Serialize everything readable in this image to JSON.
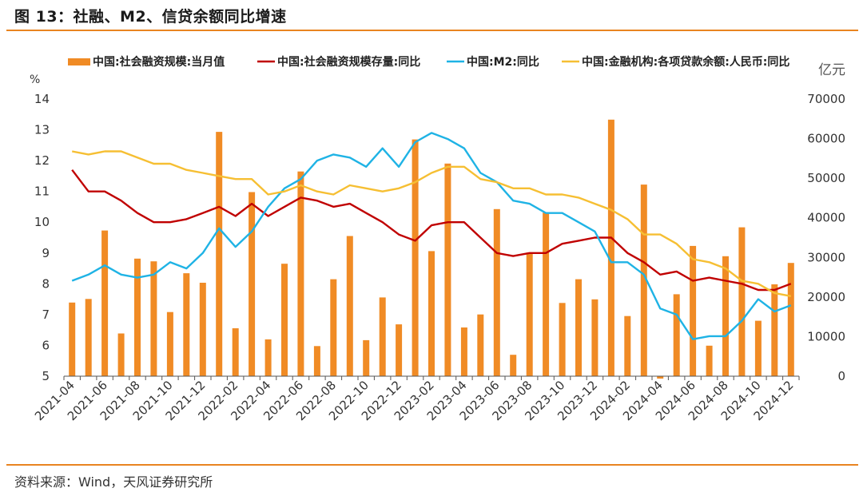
{
  "title": "图 13：社融、M2、信贷余额同比增速",
  "source": "资料来源：Wind，天风证券研究所",
  "chart_data": {
    "type": "bar+line",
    "left_unit": "%",
    "right_unit": "亿元",
    "y_left": {
      "min": 5,
      "max": 14,
      "ticks": [
        "14",
        "13",
        "12",
        "11",
        "10",
        "9",
        "8",
        "7",
        "6",
        "5"
      ]
    },
    "y_right": {
      "min": 0,
      "max": 70000,
      "ticks": [
        "70000",
        "60000",
        "50000",
        "40000",
        "30000",
        "20000",
        "10000",
        "0"
      ]
    },
    "legend_position": "top",
    "grid": false,
    "x_tick_labels": [
      "2021-04",
      "2021-06",
      "2021-08",
      "2021-10",
      "2021-12",
      "2022-02",
      "2022-04",
      "2022-06",
      "2022-08",
      "2022-10",
      "2022-12",
      "2023-02",
      "2023-04",
      "2023-06",
      "2023-08",
      "2023-10",
      "2023-12",
      "2024-02",
      "2024-04",
      "2024-06",
      "2024-08",
      "2024-10",
      "2024-12"
    ],
    "months": [
      "2021-04",
      "2021-05",
      "2021-06",
      "2021-07",
      "2021-08",
      "2021-09",
      "2021-10",
      "2021-11",
      "2021-12",
      "2022-01",
      "2022-02",
      "2022-03",
      "2022-04",
      "2022-05",
      "2022-06",
      "2022-07",
      "2022-08",
      "2022-09",
      "2022-10",
      "2022-11",
      "2022-12",
      "2023-01",
      "2023-02",
      "2023-03",
      "2023-04",
      "2023-05",
      "2023-06",
      "2023-07",
      "2023-08",
      "2023-09",
      "2023-10",
      "2023-11",
      "2023-12",
      "2024-01",
      "2024-02",
      "2024-03",
      "2024-04",
      "2024-05",
      "2024-06",
      "2024-07",
      "2024-08",
      "2024-09",
      "2024-10",
      "2024-11",
      "2024-12"
    ],
    "series": [
      {
        "name": "中国:社会融资规模:当月值",
        "type": "bar",
        "axis": "right",
        "color": "#f08b25",
        "values": [
          18600,
          19500,
          36800,
          10800,
          29700,
          29000,
          16200,
          26000,
          23600,
          61700,
          12100,
          46500,
          9300,
          28400,
          51700,
          7600,
          24500,
          35400,
          9100,
          19900,
          13100,
          59800,
          31600,
          53700,
          12300,
          15600,
          42200,
          5400,
          31200,
          41300,
          18500,
          24500,
          19400,
          64800,
          15200,
          48400,
          -600,
          20700,
          32900,
          7700,
          30300,
          37600,
          14000,
          23200,
          28600
        ]
      },
      {
        "name": "中国:社会融资规模存量:同比",
        "type": "line",
        "axis": "left",
        "color": "#c00000",
        "values": [
          11.7,
          11.0,
          11.0,
          10.7,
          10.3,
          10.0,
          10.0,
          10.1,
          10.3,
          10.5,
          10.2,
          10.6,
          10.2,
          10.5,
          10.8,
          10.7,
          10.5,
          10.6,
          10.3,
          10.0,
          9.6,
          9.4,
          9.9,
          10.0,
          10.0,
          9.5,
          9.0,
          8.9,
          9.0,
          9.0,
          9.3,
          9.4,
          9.5,
          9.5,
          9.0,
          8.7,
          8.3,
          8.4,
          8.1,
          8.2,
          8.1,
          8.0,
          7.8,
          7.8,
          8.0
        ]
      },
      {
        "name": "中国:M2:同比",
        "type": "line",
        "axis": "left",
        "color": "#1fb3e5",
        "values": [
          8.1,
          8.3,
          8.6,
          8.3,
          8.2,
          8.3,
          8.7,
          8.5,
          9.0,
          9.8,
          9.2,
          9.7,
          10.5,
          11.1,
          11.4,
          12.0,
          12.2,
          12.1,
          11.8,
          12.4,
          11.8,
          12.6,
          12.9,
          12.7,
          12.4,
          11.6,
          11.3,
          10.7,
          10.6,
          10.3,
          10.3,
          10.0,
          9.7,
          8.7,
          8.7,
          8.3,
          7.2,
          7.0,
          6.2,
          6.3,
          6.3,
          6.8,
          7.5,
          7.1,
          7.3
        ]
      },
      {
        "name": "中国:金融机构:各项贷款余额:人民币:同比",
        "type": "line",
        "axis": "left",
        "color": "#f6bf33",
        "values": [
          12.3,
          12.2,
          12.3,
          12.3,
          12.1,
          11.9,
          11.9,
          11.7,
          11.6,
          11.5,
          11.4,
          11.4,
          10.9,
          11.0,
          11.2,
          11.0,
          10.9,
          11.2,
          11.1,
          11.0,
          11.1,
          11.3,
          11.6,
          11.8,
          11.8,
          11.4,
          11.3,
          11.1,
          11.1,
          10.9,
          10.9,
          10.8,
          10.6,
          10.4,
          10.1,
          9.6,
          9.6,
          9.3,
          8.8,
          8.7,
          8.5,
          8.1,
          8.0,
          7.7,
          7.6
        ]
      }
    ]
  }
}
